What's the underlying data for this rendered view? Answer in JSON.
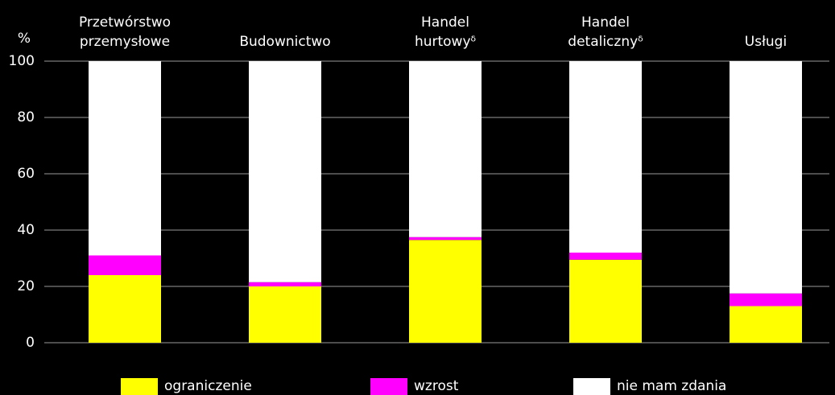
{
  "chart_data": {
    "type": "stacked_bar",
    "y_label": "%",
    "categories": [
      "Przetwórstwo\nprzemysłowe",
      "Budownictwo",
      "Handel\nhurtowyᵟ",
      "Handel\ndetalicznyᵟ",
      "Usługi"
    ],
    "series": [
      {
        "name": "ograniczenie",
        "color": "#ffff00",
        "values": [
          24,
          20,
          36.5,
          29.5,
          13
        ]
      },
      {
        "name": "wzrost",
        "color": "#ff00ff",
        "values": [
          7,
          1.5,
          1,
          2.5,
          4.5
        ]
      },
      {
        "name": "nie mam zdania",
        "color": "#ffffff",
        "values": [
          69,
          78.5,
          62.5,
          68,
          82.5
        ]
      }
    ],
    "ylim": [
      0,
      100
    ],
    "yticks": [
      0,
      20,
      40,
      60,
      80,
      100
    ],
    "grid": true,
    "legend": "bottom"
  }
}
